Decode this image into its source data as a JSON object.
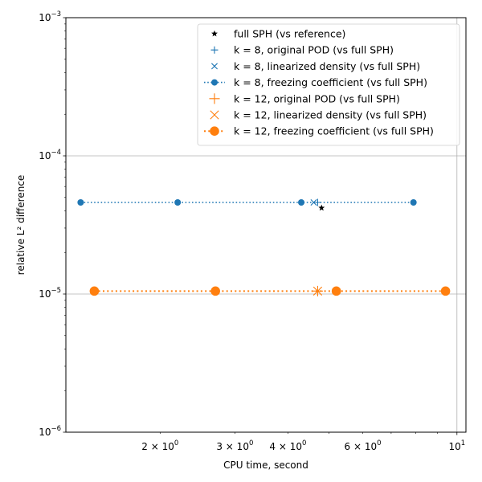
{
  "chart_data": {
    "type": "line",
    "xscale": "log",
    "yscale": "log",
    "xlabel": "CPU time, second",
    "ylabel": "relative L² difference",
    "xlim": [
      1.2,
      10.5
    ],
    "ylim": [
      1e-06,
      0.001
    ],
    "grid": true,
    "legend_position": "upper right",
    "x_ticks": [
      {
        "value": 2,
        "base": "2",
        "label": "2 × 10^0",
        "mantissa": "2 × 10",
        "exp": "0"
      },
      {
        "value": 3,
        "base": "3",
        "label": "3 × 10^0",
        "mantissa": "3 × 10",
        "exp": "0"
      },
      {
        "value": 4,
        "base": "4",
        "label": "4 × 10^0",
        "mantissa": "4 × 10",
        "exp": "0"
      },
      {
        "value": 6,
        "base": "6",
        "label": "6 × 10^0",
        "mantissa": "6 × 10",
        "exp": "0"
      },
      {
        "value": 10,
        "base": "10",
        "label": "10^1",
        "mantissa": "10",
        "exp": "1"
      }
    ],
    "y_ticks": [
      {
        "value": 1e-06,
        "label": "10^-6",
        "mantissa": "10",
        "exp": "−6"
      },
      {
        "value": 1e-05,
        "label": "10^-5",
        "mantissa": "10",
        "exp": "−5"
      },
      {
        "value": 0.0001,
        "label": "10^-4",
        "mantissa": "10",
        "exp": "−4"
      },
      {
        "value": 0.001,
        "label": "10^-3",
        "mantissa": "10",
        "exp": "−3"
      }
    ],
    "series": [
      {
        "name": "full SPH (vs reference)",
        "color": "#000000",
        "marker": "star",
        "line": "none",
        "x": [
          4.8
        ],
        "y": [
          4.2e-05
        ]
      },
      {
        "name": "k = 8, original POD (vs full SPH)",
        "color": "#1f77b4",
        "marker": "plus",
        "line": "none",
        "x": [
          4.7
        ],
        "y": [
          4.6e-05
        ]
      },
      {
        "name": "k = 8, linearized density (vs full SPH)",
        "color": "#1f77b4",
        "marker": "x",
        "line": "none",
        "x": [
          4.6
        ],
        "y": [
          4.6e-05
        ]
      },
      {
        "name": "k = 8, freezing coefficient (vs full SPH)",
        "color": "#1f77b4",
        "marker": "circle",
        "line": "dotted",
        "x": [
          1.3,
          2.2,
          4.3,
          7.9
        ],
        "y": [
          4.6e-05,
          4.6e-05,
          4.6e-05,
          4.6e-05
        ]
      },
      {
        "name": "k = 12, original POD (vs full SPH)",
        "color": "#ff7f0e",
        "marker": "plus",
        "line": "none",
        "x": [
          4.7
        ],
        "y": [
          1.05e-05
        ]
      },
      {
        "name": "k = 12, linearized density (vs full SPH)",
        "color": "#ff7f0e",
        "marker": "x",
        "line": "none",
        "x": [
          4.7
        ],
        "y": [
          1.05e-05
        ]
      },
      {
        "name": "k = 12, freezing coefficient (vs full SPH)",
        "color": "#ff7f0e",
        "marker": "circle",
        "line": "dotted",
        "x": [
          1.4,
          2.7,
          5.2,
          9.4
        ],
        "y": [
          1.05e-05,
          1.05e-05,
          1.05e-05,
          1.05e-05
        ]
      }
    ]
  }
}
